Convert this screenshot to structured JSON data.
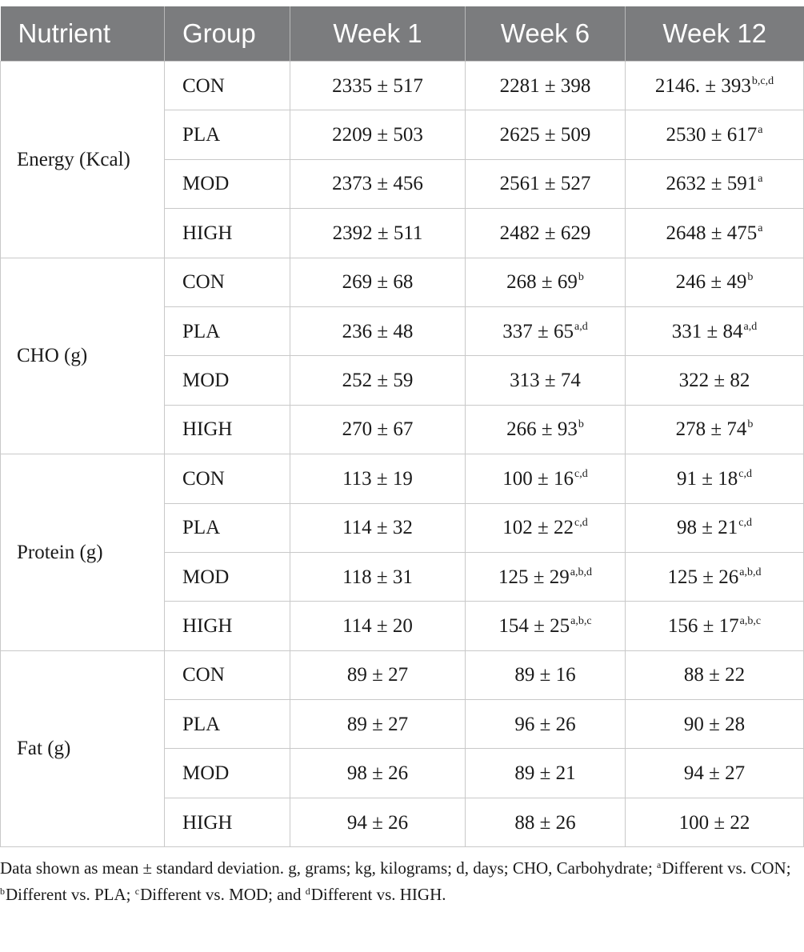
{
  "table": {
    "headers": [
      "Nutrient",
      "Group",
      "Week 1",
      "Week 6",
      "Week 12"
    ],
    "sections": [
      {
        "nutrient": "Energy (Kcal)",
        "rows": [
          {
            "group": "CON",
            "cells": [
              {
                "v": "2335 ± 517",
                "s": ""
              },
              {
                "v": "2281 ± 398",
                "s": ""
              },
              {
                "v": "2146. ± 393",
                "s": "b,c,d"
              }
            ]
          },
          {
            "group": "PLA",
            "cells": [
              {
                "v": "2209 ± 503",
                "s": ""
              },
              {
                "v": "2625 ± 509",
                "s": ""
              },
              {
                "v": "2530 ± 617",
                "s": "a"
              }
            ]
          },
          {
            "group": "MOD",
            "cells": [
              {
                "v": "2373 ± 456",
                "s": ""
              },
              {
                "v": "2561 ± 527",
                "s": ""
              },
              {
                "v": "2632 ± 591",
                "s": "a"
              }
            ]
          },
          {
            "group": "HIGH",
            "cells": [
              {
                "v": "2392 ± 511",
                "s": ""
              },
              {
                "v": "2482 ± 629",
                "s": ""
              },
              {
                "v": "2648 ± 475",
                "s": "a"
              }
            ]
          }
        ]
      },
      {
        "nutrient": "CHO (g)",
        "rows": [
          {
            "group": "CON",
            "cells": [
              {
                "v": "269 ± 68",
                "s": ""
              },
              {
                "v": "268 ± 69",
                "s": "b"
              },
              {
                "v": "246 ± 49",
                "s": "b"
              }
            ]
          },
          {
            "group": "PLA",
            "cells": [
              {
                "v": "236 ± 48",
                "s": ""
              },
              {
                "v": "337 ± 65",
                "s": "a,d"
              },
              {
                "v": "331 ± 84",
                "s": "a,d"
              }
            ]
          },
          {
            "group": "MOD",
            "cells": [
              {
                "v": "252 ± 59",
                "s": ""
              },
              {
                "v": "313 ± 74",
                "s": ""
              },
              {
                "v": "322 ± 82",
                "s": ""
              }
            ]
          },
          {
            "group": "HIGH",
            "cells": [
              {
                "v": "270 ± 67",
                "s": ""
              },
              {
                "v": "266 ± 93",
                "s": "b"
              },
              {
                "v": "278 ± 74",
                "s": "b"
              }
            ]
          }
        ]
      },
      {
        "nutrient": "Protein (g)",
        "rows": [
          {
            "group": "CON",
            "cells": [
              {
                "v": "113 ± 19",
                "s": ""
              },
              {
                "v": "100 ± 16",
                "s": "c,d"
              },
              {
                "v": "91 ± 18",
                "s": "c,d"
              }
            ]
          },
          {
            "group": "PLA",
            "cells": [
              {
                "v": "114 ± 32",
                "s": ""
              },
              {
                "v": "102 ± 22",
                "s": "c,d"
              },
              {
                "v": "98 ± 21",
                "s": "c,d"
              }
            ]
          },
          {
            "group": "MOD",
            "cells": [
              {
                "v": "118 ± 31",
                "s": ""
              },
              {
                "v": "125 ± 29",
                "s": "a,b,d"
              },
              {
                "v": "125 ± 26",
                "s": "a,b,d"
              }
            ]
          },
          {
            "group": "HIGH",
            "cells": [
              {
                "v": "114 ± 20",
                "s": ""
              },
              {
                "v": "154 ± 25",
                "s": "a,b,c"
              },
              {
                "v": "156 ± 17",
                "s": "a,b,c"
              }
            ]
          }
        ]
      },
      {
        "nutrient": "Fat (g)",
        "rows": [
          {
            "group": "CON",
            "cells": [
              {
                "v": "89 ± 27",
                "s": ""
              },
              {
                "v": "89 ± 16",
                "s": ""
              },
              {
                "v": "88 ± 22",
                "s": ""
              }
            ]
          },
          {
            "group": "PLA",
            "cells": [
              {
                "v": "89 ± 27",
                "s": ""
              },
              {
                "v": "96 ± 26",
                "s": ""
              },
              {
                "v": "90 ± 28",
                "s": ""
              }
            ]
          },
          {
            "group": "MOD",
            "cells": [
              {
                "v": "98 ± 26",
                "s": ""
              },
              {
                "v": "89 ± 21",
                "s": ""
              },
              {
                "v": "94 ± 27",
                "s": ""
              }
            ]
          },
          {
            "group": "HIGH",
            "cells": [
              {
                "v": "94 ± 26",
                "s": ""
              },
              {
                "v": "88 ± 26",
                "s": ""
              },
              {
                "v": "100 ± 22",
                "s": ""
              }
            ]
          }
        ]
      }
    ]
  },
  "footnote": {
    "intro": "Data shown as mean ± standard deviation. g, grams; kg, kilograms; d, days; CHO, Carbohydrate; ",
    "parts": [
      {
        "sup": "a",
        "text": "Different vs. CON; "
      },
      {
        "sup": "b",
        "text": "Different vs. PLA; "
      },
      {
        "sup": "c",
        "text": "Different vs. MOD; and "
      },
      {
        "sup": "d",
        "text": "Different vs. HIGH."
      }
    ]
  },
  "colors": {
    "header_bg": "#7b7c7e",
    "header_text": "#ffffff",
    "grid": "#c9c9c9"
  }
}
